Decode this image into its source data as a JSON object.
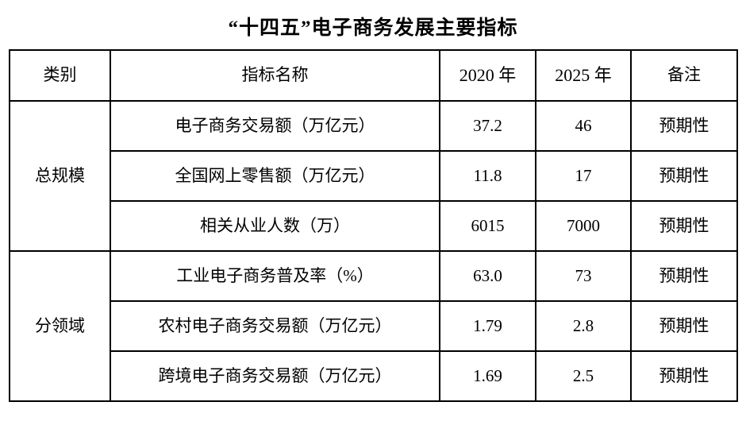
{
  "title": "“十四五”电子商务发展主要指标",
  "table": {
    "headers": {
      "category": "类别",
      "indicator": "指标名称",
      "year2020": "2020 年",
      "year2025": "2025 年",
      "note": "备注"
    },
    "groups": [
      {
        "category": "总规模",
        "rows": [
          {
            "indicator": "电子商务交易额（万亿元）",
            "y2020": "37.2",
            "y2025": "46",
            "note": "预期性"
          },
          {
            "indicator": "全国网上零售额（万亿元）",
            "y2020": "11.8",
            "y2025": "17",
            "note": "预期性"
          },
          {
            "indicator": "相关从业人数（万）",
            "y2020": "6015",
            "y2025": "7000",
            "note": "预期性"
          }
        ]
      },
      {
        "category": "分领域",
        "rows": [
          {
            "indicator": "工业电子商务普及率（%）",
            "y2020": "63.0",
            "y2025": "73",
            "note": "预期性"
          },
          {
            "indicator": "农村电子商务交易额（万亿元）",
            "y2020": "1.79",
            "y2025": "2.8",
            "note": "预期性"
          },
          {
            "indicator": "跨境电子商务交易额（万亿元）",
            "y2020": "1.69",
            "y2025": "2.5",
            "note": "预期性"
          }
        ]
      }
    ]
  },
  "colors": {
    "text": "#000000",
    "border": "#000000",
    "background": "#ffffff"
  }
}
